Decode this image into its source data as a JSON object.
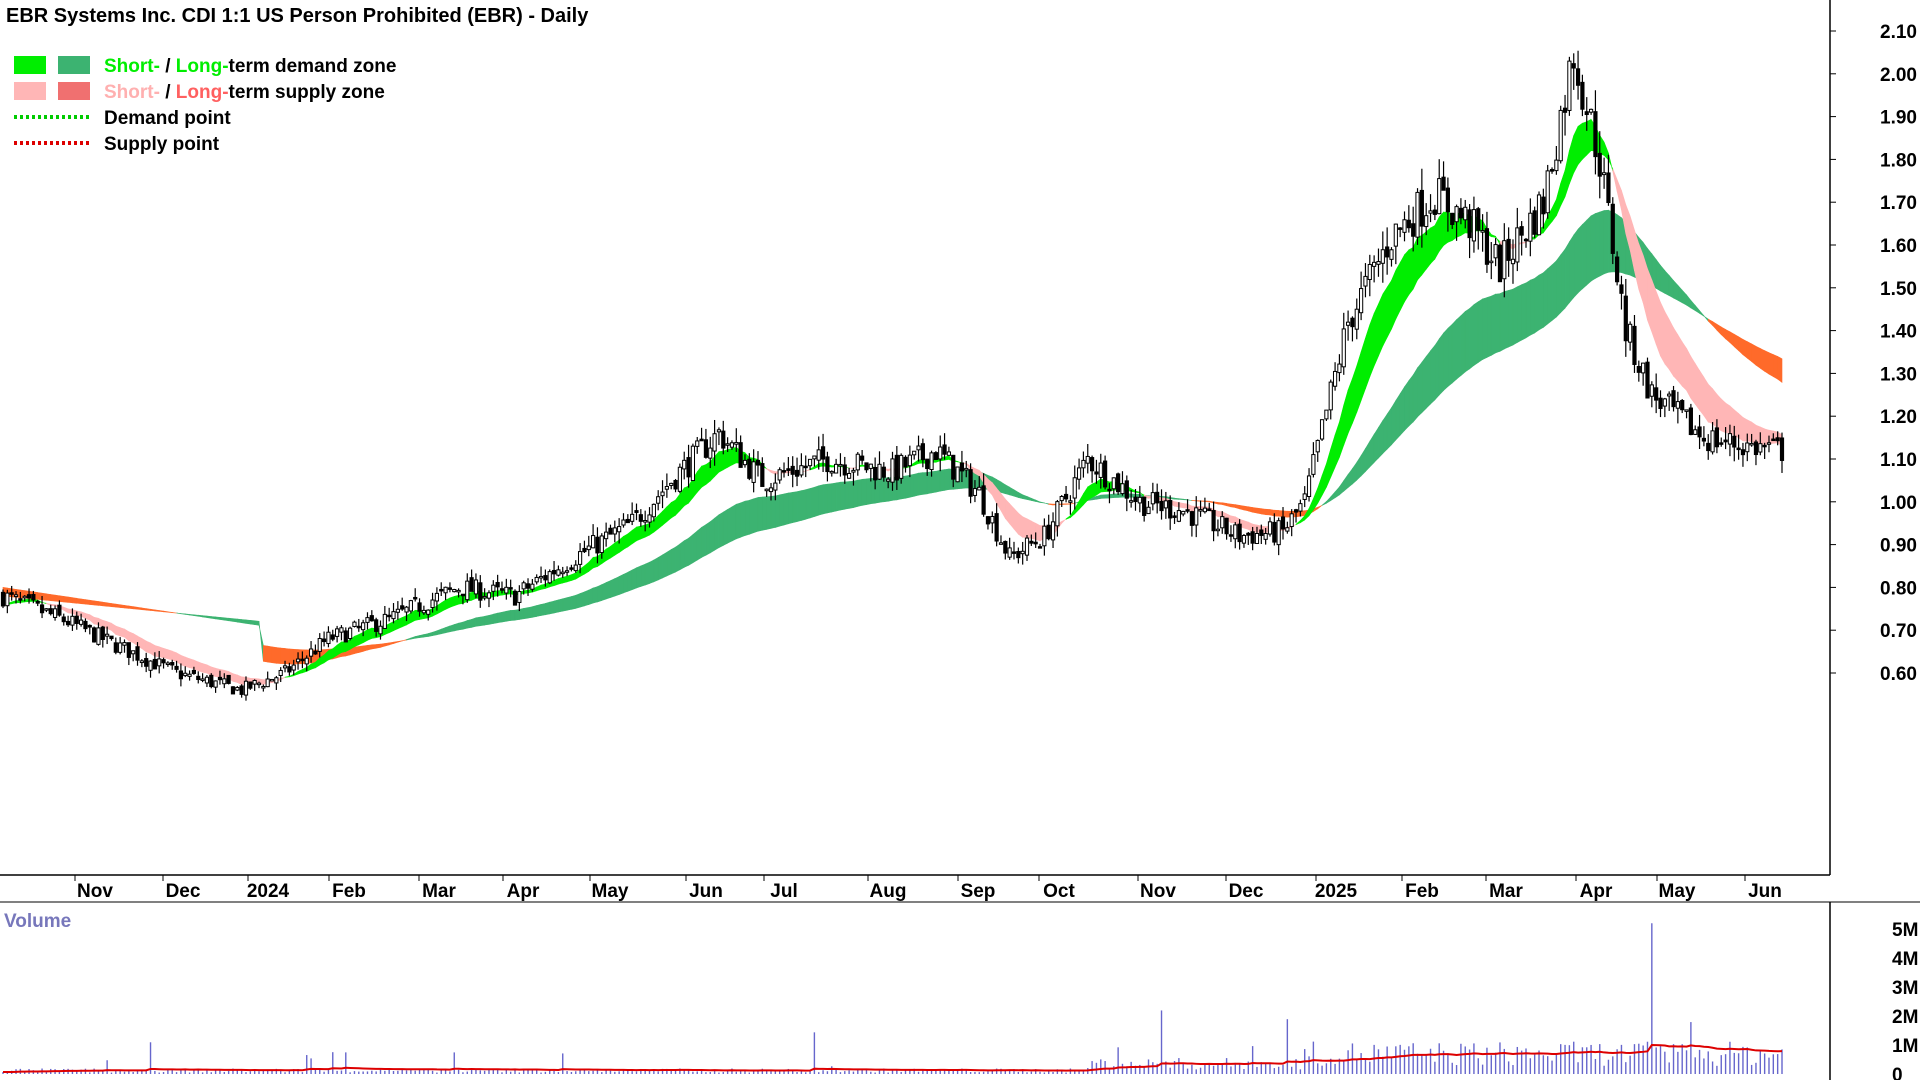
{
  "chart_data": {
    "type": "candlestick",
    "title": "EBR Systems Inc. CDI 1:1 US Person Prohibited (EBR) - Daily",
    "legend": [
      {
        "parts": [
          {
            "text": "Short-",
            "color": "#00ee00"
          },
          {
            "text": " / ",
            "color": "#000000"
          },
          {
            "text": "Long-",
            "color": "#00ee00"
          },
          {
            "text": "term demand zone",
            "color": "#000000"
          }
        ],
        "swatches": [
          "#00ee00",
          "#3cb371"
        ]
      },
      {
        "parts": [
          {
            "text": "Short-",
            "color": "#ffb0b0"
          },
          {
            "text": " / ",
            "color": "#000000"
          },
          {
            "text": "Long-",
            "color": "#ff6060"
          },
          {
            "text": "term supply zone",
            "color": "#000000"
          }
        ],
        "swatches": [
          "#ffb6b6",
          "#f07070"
        ]
      },
      {
        "parts": [
          {
            "text": "Demand point",
            "color": "#000000"
          }
        ],
        "dotted": "#00cc00"
      },
      {
        "parts": [
          {
            "text": "Supply point",
            "color": "#000000"
          }
        ],
        "dotted": "#dd0000"
      }
    ],
    "y_ticks": [
      "2.10",
      "2.00",
      "1.90",
      "1.80",
      "1.70",
      "1.60",
      "1.50",
      "1.40",
      "1.30",
      "1.20",
      "1.10",
      "1.00",
      "0.90",
      "0.80",
      "0.70",
      "0.60"
    ],
    "ylim": [
      0.5,
      2.15
    ],
    "x_labels": [
      "Nov",
      "Dec",
      "2024",
      "Feb",
      "Mar",
      "Apr",
      "May",
      "Jun",
      "Jul",
      "Aug",
      "Sep",
      "Oct",
      "Nov",
      "Dec",
      "2025",
      "Feb",
      "Mar",
      "Apr",
      "May",
      "Jun"
    ],
    "price_path": [
      [
        0,
        0.78
      ],
      [
        15,
        0.72
      ],
      [
        25,
        0.67
      ],
      [
        40,
        0.6
      ],
      [
        55,
        0.56
      ],
      [
        65,
        0.6
      ],
      [
        75,
        0.68
      ],
      [
        90,
        0.73
      ],
      [
        105,
        0.8
      ],
      [
        118,
        0.78
      ],
      [
        130,
        0.86
      ],
      [
        145,
        0.95
      ],
      [
        155,
        1.06
      ],
      [
        165,
        1.16
      ],
      [
        175,
        1.05
      ],
      [
        190,
        1.1
      ],
      [
        205,
        1.07
      ],
      [
        215,
        1.12
      ],
      [
        225,
        1.02
      ],
      [
        232,
        0.87
      ],
      [
        240,
        0.92
      ],
      [
        250,
        1.1
      ],
      [
        262,
        1.0
      ],
      [
        272,
        0.98
      ],
      [
        285,
        0.92
      ],
      [
        295,
        0.93
      ],
      [
        300,
        1.0
      ],
      [
        310,
        1.42
      ],
      [
        320,
        1.62
      ],
      [
        330,
        1.72
      ],
      [
        338,
        1.65
      ],
      [
        345,
        1.55
      ],
      [
        355,
        1.7
      ],
      [
        362,
        2.05
      ],
      [
        368,
        1.8
      ],
      [
        374,
        1.4
      ],
      [
        380,
        1.25
      ],
      [
        392,
        1.15
      ],
      [
        402,
        1.13
      ],
      [
        410,
        1.12
      ]
    ],
    "demand_short": {
      "start": 45,
      "end": 378
    },
    "demand_long": {
      "start": 60,
      "end": 380
    },
    "supply_short": {
      "start": 0,
      "end": 410
    },
    "supply_long": {
      "start": 0,
      "end": 410
    },
    "volume": {
      "label": "Volume",
      "y_ticks": [
        "5M",
        "4M",
        "3M",
        "2M",
        "1M",
        "0"
      ],
      "ylim": [
        0,
        5.3
      ],
      "average_line_color": "#dd0000",
      "bar_color": "#6666cc"
    }
  }
}
